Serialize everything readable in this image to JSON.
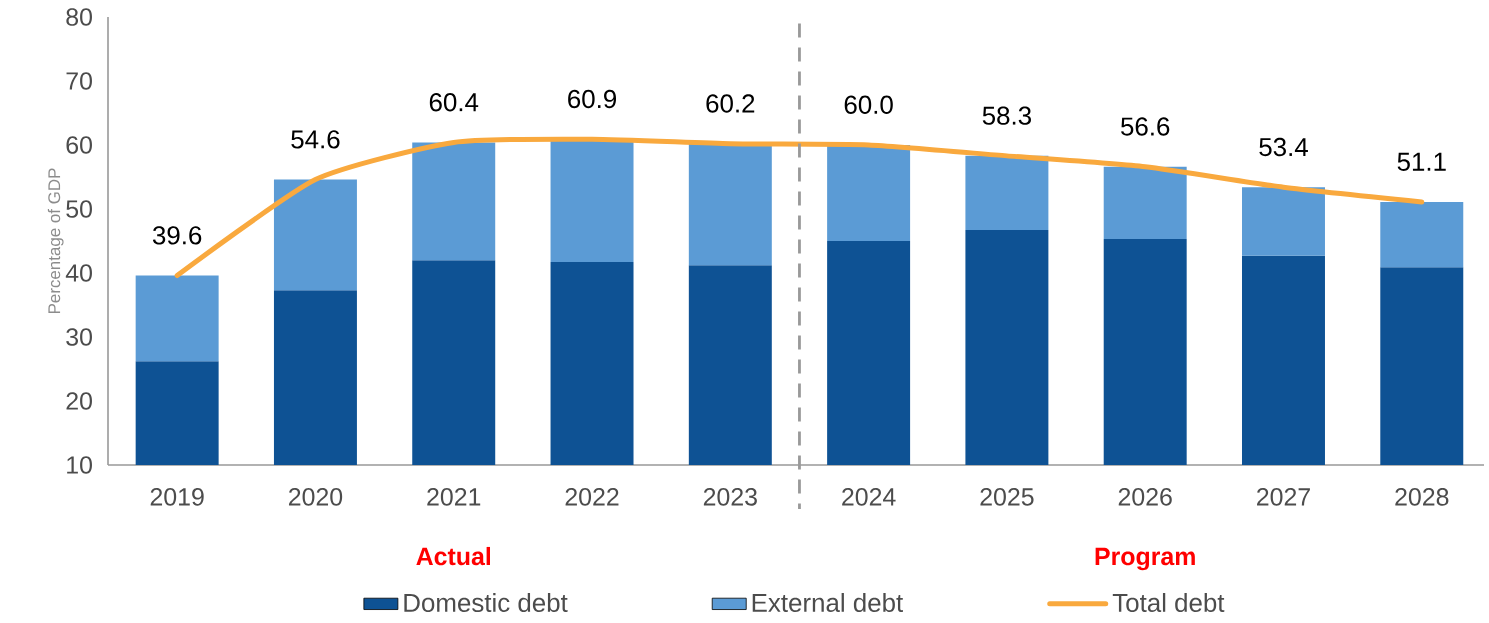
{
  "chart_data": {
    "type": "bar",
    "stacked": true,
    "ylabel": "Percentage of GDP",
    "categories": [
      "2019",
      "2020",
      "2021",
      "2022",
      "2023",
      "2024",
      "2025",
      "2026",
      "2027",
      "2028"
    ],
    "series": [
      {
        "name": "Domestic debt",
        "color": "#0e5294",
        "values": [
          26.2,
          37.3,
          42.0,
          41.7,
          41.2,
          45.0,
          46.7,
          45.3,
          42.7,
          40.9
        ]
      },
      {
        "name": "External debt",
        "color": "#5b9bd5",
        "values": [
          13.4,
          17.3,
          18.4,
          19.2,
          19.0,
          15.0,
          11.6,
          11.3,
          10.7,
          10.2
        ]
      },
      {
        "name": "Total debt",
        "type": "line",
        "color": "#f9a93e",
        "values": [
          39.6,
          54.6,
          60.4,
          60.9,
          60.2,
          60.0,
          58.3,
          56.6,
          53.4,
          51.1
        ],
        "value_labels": [
          "39.6",
          "54.6",
          "60.4",
          "60.9",
          "60.2",
          "60.0",
          "58.3",
          "56.6",
          "53.4",
          "51.1"
        ]
      }
    ],
    "ylim": [
      10,
      80
    ],
    "yticks": [
      10,
      20,
      30,
      40,
      50,
      60,
      70,
      80
    ],
    "annotations": [
      "Actual",
      "Program"
    ],
    "legend": "bottom",
    "grid": false
  }
}
